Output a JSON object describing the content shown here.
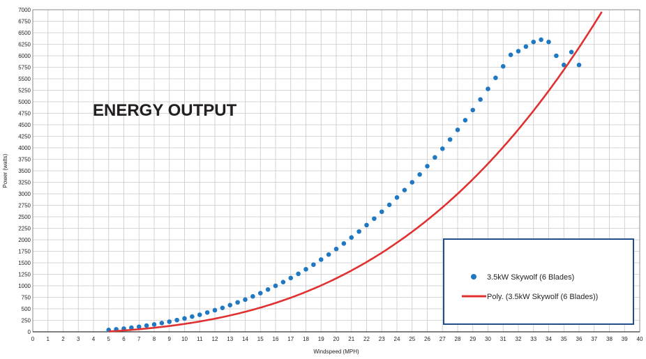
{
  "chart_data": {
    "type": "scatter",
    "title": "ENERGY OUTPUT",
    "xlabel": "Windspeed (MPH)",
    "ylabel": "Power (watts)",
    "xlim": [
      0,
      40
    ],
    "ylim": [
      0,
      7000
    ],
    "x_tick_step": 1,
    "y_tick_step": 250,
    "grid": true,
    "legend_position": "bottom-right",
    "colors": {
      "points": "#1f78c1",
      "trend": "#e03030",
      "legend_border": "#1f4e8a",
      "grid": "#c8c8c8"
    },
    "series": [
      {
        "name": "3.5kW Skywolf (6 Blades)",
        "kind": "scatter",
        "x": [
          5,
          5.5,
          6,
          6.5,
          7,
          7.5,
          8,
          8.5,
          9,
          9.5,
          10,
          10.5,
          11,
          11.5,
          12,
          12.5,
          13,
          13.5,
          14,
          14.5,
          15,
          15.5,
          16,
          16.5,
          17,
          17.5,
          18,
          18.5,
          19,
          19.5,
          20,
          20.5,
          21,
          21.5,
          22,
          22.5,
          23,
          23.5,
          24,
          24.5,
          25,
          25.5,
          26,
          26.5,
          27,
          27.5,
          28,
          28.5,
          29,
          29.5,
          30,
          30.5,
          31,
          31.5,
          32,
          32.5,
          33,
          33.5,
          34,
          34.5,
          35,
          35.5,
          36
        ],
        "y": [
          40,
          55,
          70,
          90,
          110,
          135,
          160,
          190,
          220,
          255,
          290,
          330,
          370,
          420,
          470,
          520,
          580,
          640,
          700,
          770,
          840,
          920,
          1000,
          1080,
          1170,
          1260,
          1360,
          1460,
          1570,
          1680,
          1800,
          1920,
          2050,
          2180,
          2320,
          2460,
          2610,
          2760,
          2920,
          3080,
          3250,
          3420,
          3600,
          3790,
          3980,
          4180,
          4390,
          4600,
          4820,
          5050,
          5280,
          5520,
          5770,
          6020,
          6100,
          6200,
          6300,
          6350,
          6300,
          6000,
          5800,
          6080,
          5800
        ]
      },
      {
        "name": "Poly. (3.5kW Skywolf (6 Blades))",
        "kind": "trend",
        "coefficients": [
          -60,
          10,
          0.08,
          0.1238
        ]
      }
    ]
  }
}
